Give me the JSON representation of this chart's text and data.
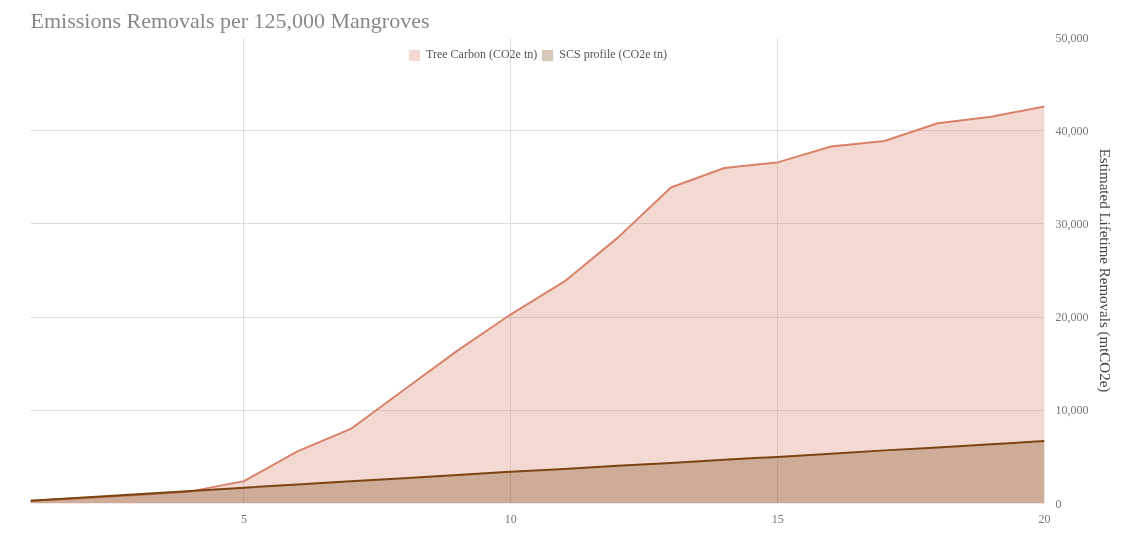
{
  "chart_data": {
    "type": "area",
    "title": "Emissions Removals per 125,000 Mangroves",
    "y2label": "Estimated Lifetime Removals (mtCO2e)",
    "x": [
      1,
      2,
      3,
      4,
      5,
      6,
      7,
      8,
      9,
      10,
      11,
      12,
      13,
      14,
      15,
      16,
      17,
      18,
      19,
      20
    ],
    "series": [
      {
        "name": "Tree Carbon (CO2e tn)",
        "color": "#d9826a",
        "values": [
          300,
          600,
          900,
          1300,
          2400,
          5600,
          8000,
          12200,
          16400,
          20300,
          23800,
          28500,
          33900,
          36000,
          36600,
          38300,
          38900,
          40800,
          41500,
          42600
        ]
      },
      {
        "name": "SCS profile (CO2e tn)",
        "color": "#7a4414",
        "values": [
          300,
          650,
          1000,
          1350,
          1700,
          2050,
          2400,
          2700,
          3050,
          3400,
          3700,
          4050,
          4350,
          4700,
          5000,
          5350,
          5700,
          6000,
          6350,
          6700
        ]
      }
    ],
    "xlim": [
      1,
      20
    ],
    "xticks": [
      5,
      10,
      15,
      20
    ],
    "ylim": [
      0,
      50000
    ],
    "yticks": [
      0,
      {
        "value": 10000,
        "label": "10,000"
      },
      {
        "value": 20000,
        "label": "20,000"
      },
      {
        "value": 30000,
        "label": "30,000"
      },
      {
        "value": 40000,
        "label": "40,000"
      },
      {
        "value": 50000,
        "label": "50,000"
      }
    ],
    "grid": true,
    "legend": "top"
  }
}
